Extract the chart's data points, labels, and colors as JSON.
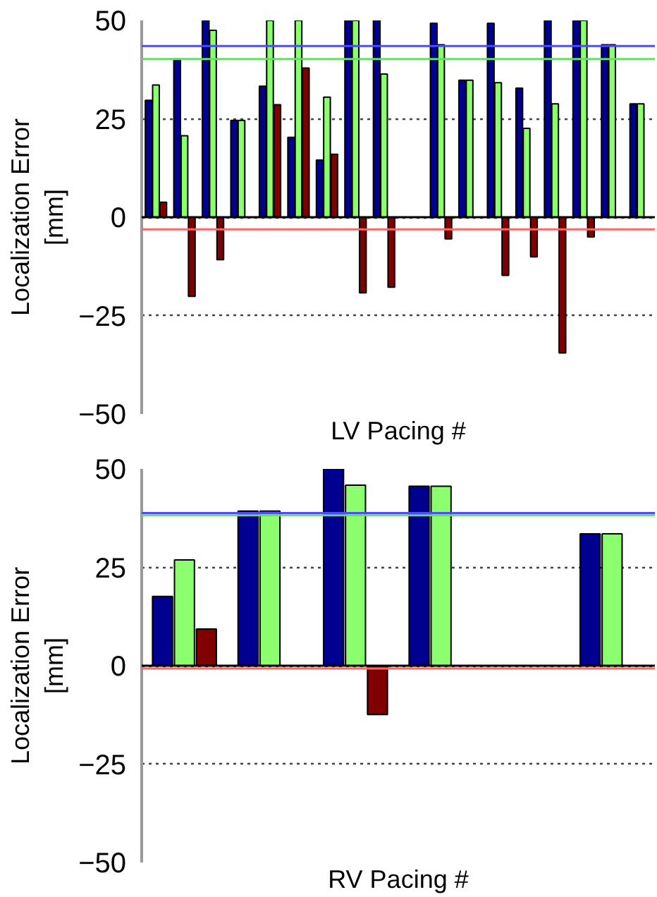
{
  "chart_data": [
    {
      "type": "bar",
      "xlabel": "LV Pacing #",
      "ylabel": "Localization Error\n[mm]",
      "categories": [
        null,
        null,
        null,
        null,
        null,
        null,
        null,
        null,
        null,
        null,
        null,
        null,
        null,
        null,
        null,
        null,
        null,
        null
      ],
      "series": [
        {
          "color": "#000090",
          "values": [
            29.7,
            40.2,
            50,
            24.6,
            33.3,
            20.3,
            14.5,
            50,
            50,
            null,
            49.3,
            34.8,
            49.3,
            32.8,
            50,
            50,
            43.8,
            28.8
          ]
        },
        {
          "color": "#8cff6e",
          "values": [
            33.6,
            20.7,
            47.5,
            24.6,
            50,
            50,
            30.5,
            50,
            36.4,
            null,
            43.8,
            34.8,
            34.2,
            22.6,
            28.8,
            50,
            43.8,
            28.8
          ]
        },
        {
          "color": "#800000",
          "values": [
            3.8,
            -20.1,
            -10.8,
            null,
            28.6,
            37.9,
            16.0,
            -19.2,
            -17.8,
            null,
            -5.5,
            null,
            -14.8,
            -10.1,
            -34.5,
            -5.0,
            null,
            null
          ]
        }
      ],
      "ylim": [
        -50,
        50
      ],
      "yticks": [
        -50,
        -25,
        0,
        25,
        50
      ],
      "grid": "y",
      "tick_labels": "y",
      "ref_lines": [
        {
          "axis": "y",
          "value": 0,
          "color": "#000000"
        },
        {
          "axis": "y",
          "value": 43.5,
          "color": "#4d4dff"
        },
        {
          "axis": "y",
          "value": 40.2,
          "color": "#66dd66"
        },
        {
          "axis": "y",
          "value": -3.1,
          "color": "#ff6666"
        }
      ]
    },
    {
      "type": "bar",
      "xlabel": "RV Pacing #",
      "ylabel": "Localization Error\n[mm]",
      "categories": [
        null,
        null,
        null,
        null,
        null,
        null
      ],
      "series": [
        {
          "color": "#000090",
          "values": [
            17.6,
            39.3,
            50,
            45.6,
            null,
            33.5
          ]
        },
        {
          "color": "#8cff6e",
          "values": [
            26.9,
            39.3,
            45.9,
            45.6,
            null,
            33.5
          ]
        },
        {
          "color": "#800000",
          "values": [
            9.3,
            null,
            -12.4,
            null,
            null,
            null
          ]
        }
      ],
      "ylim": [
        -50,
        50
      ],
      "yticks": [
        -50,
        -25,
        0,
        25,
        50
      ],
      "grid": "y",
      "tick_labels": "y",
      "ref_lines": [
        {
          "axis": "y",
          "value": 0,
          "color": "#000000"
        },
        {
          "axis": "y",
          "value": 38.8,
          "color": "#4d4dff"
        },
        {
          "axis": "y",
          "value": 38.2,
          "color": "#66dd66"
        },
        {
          "axis": "y",
          "value": -0.7,
          "color": "#ff6666"
        }
      ]
    }
  ]
}
